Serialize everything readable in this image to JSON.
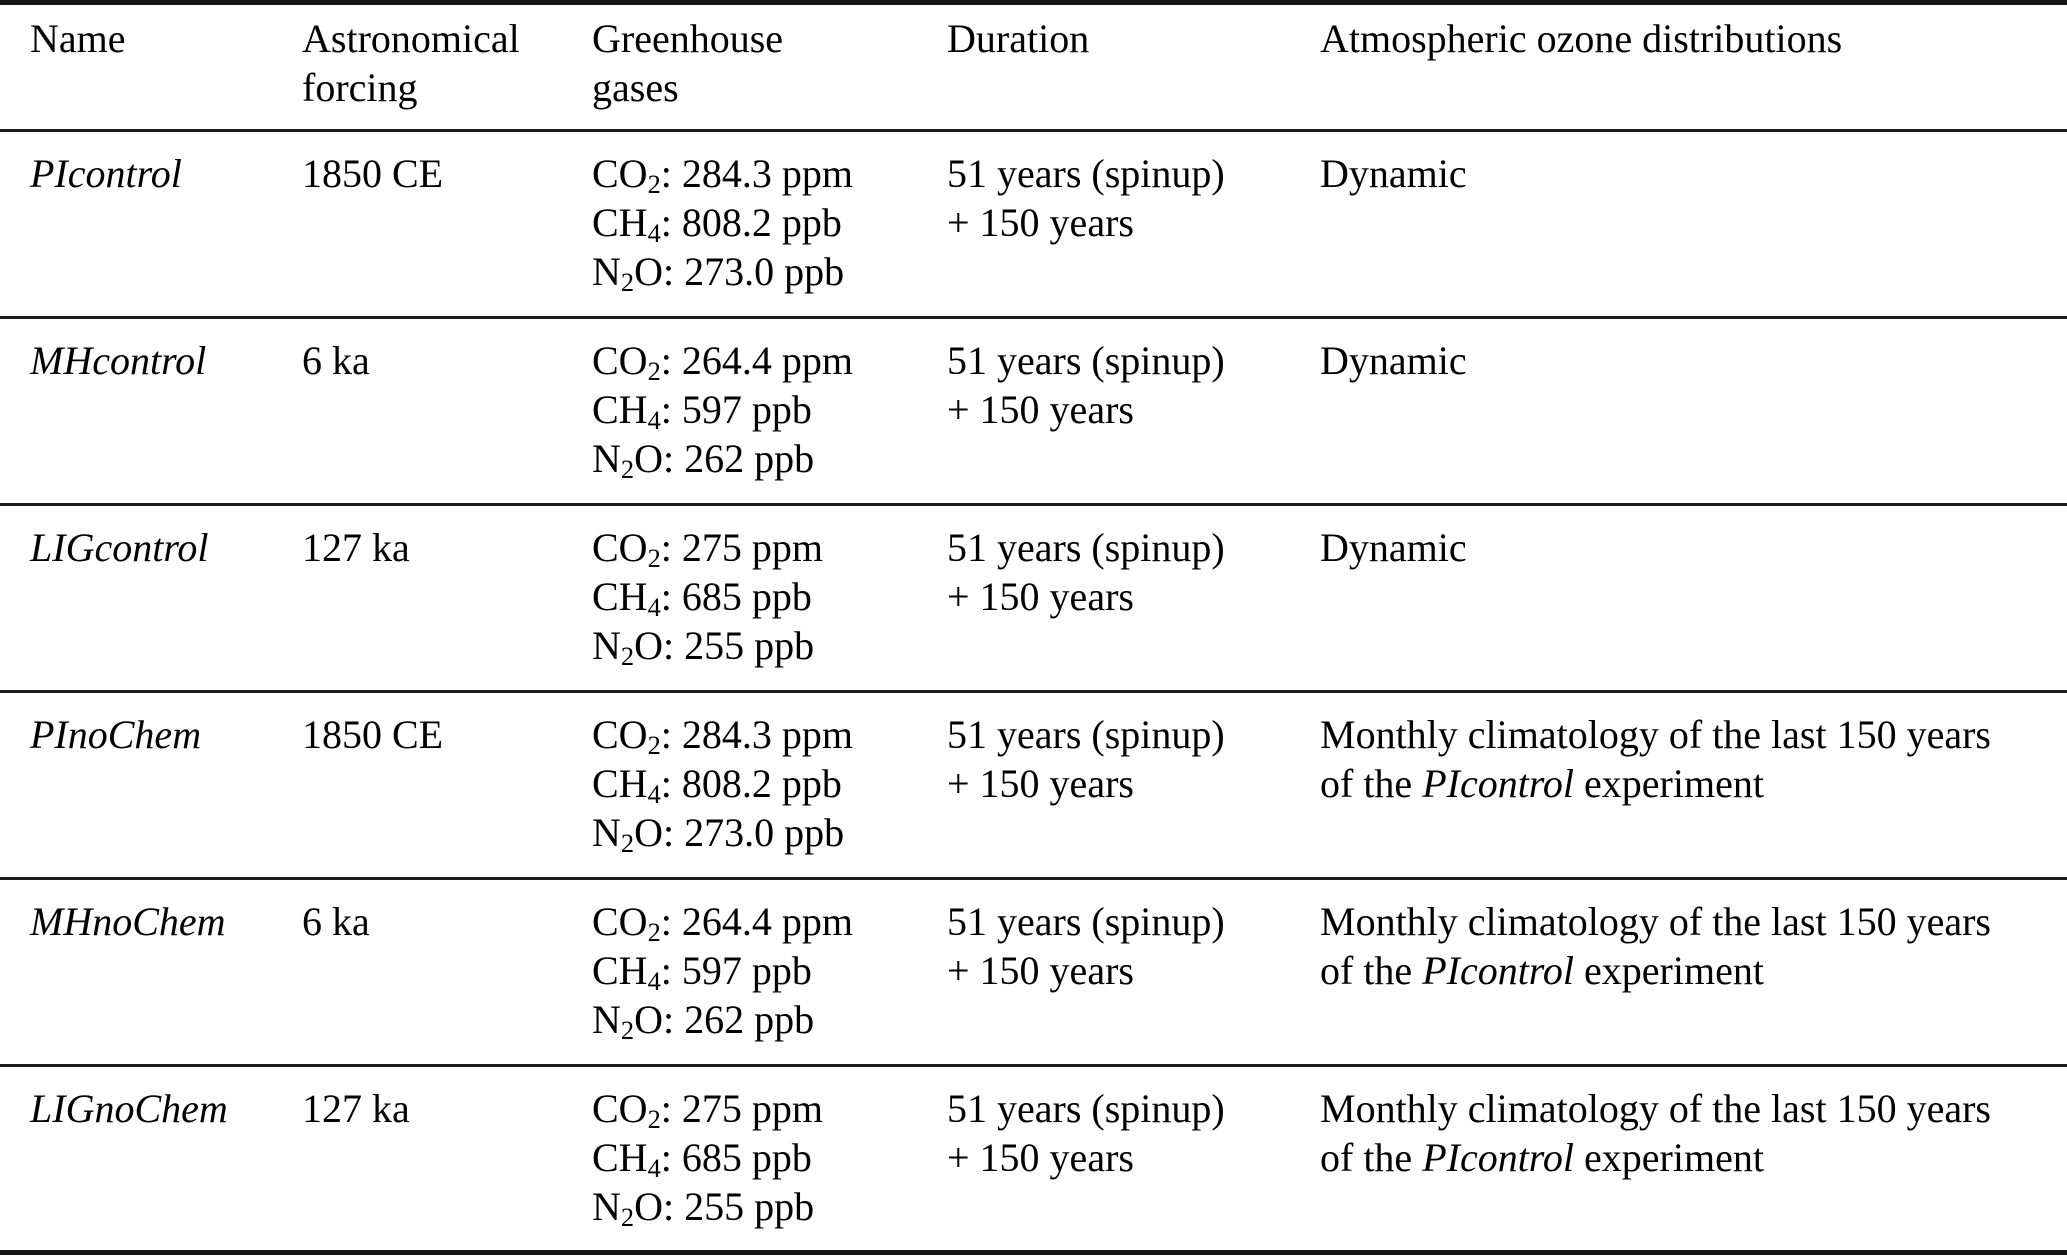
{
  "header": {
    "name": {
      "line1": "Name",
      "line2": ""
    },
    "astronomical_forcing": {
      "line1": "Astronomical",
      "line2": "forcing"
    },
    "greenhouse_gases": {
      "line1": "Greenhouse",
      "line2": "gases"
    },
    "duration": {
      "line1": "Duration",
      "line2": ""
    },
    "ozone": {
      "line1": "Atmospheric ozone distributions",
      "line2": ""
    }
  },
  "rows": [
    {
      "name": "PIcontrol",
      "forcing": "1850 CE",
      "gases": [
        {
          "pre": "CO",
          "sub": "2",
          "post": ": 284.3 ppm"
        },
        {
          "pre": "CH",
          "sub": "4",
          "post": ": 808.2 ppb"
        },
        {
          "pre": "N",
          "sub": "2",
          "post": "O: 273.0 ppb"
        }
      ],
      "duration": [
        "51 years (spinup)",
        "+ 150 years"
      ],
      "ozone": {
        "line1": "Dynamic",
        "line2_pre": "",
        "line2_italic": "",
        "line2_post": ""
      }
    },
    {
      "name": "MHcontrol",
      "forcing": "6 ka",
      "gases": [
        {
          "pre": "CO",
          "sub": "2",
          "post": ": 264.4 ppm"
        },
        {
          "pre": "CH",
          "sub": "4",
          "post": ": 597 ppb"
        },
        {
          "pre": "N",
          "sub": "2",
          "post": "O: 262 ppb"
        }
      ],
      "duration": [
        "51 years (spinup)",
        "+ 150 years"
      ],
      "ozone": {
        "line1": "Dynamic",
        "line2_pre": "",
        "line2_italic": "",
        "line2_post": ""
      }
    },
    {
      "name": "LIGcontrol",
      "forcing": "127 ka",
      "gases": [
        {
          "pre": "CO",
          "sub": "2",
          "post": ": 275 ppm"
        },
        {
          "pre": "CH",
          "sub": "4",
          "post": ": 685 ppb"
        },
        {
          "pre": "N",
          "sub": "2",
          "post": "O: 255 ppb"
        }
      ],
      "duration": [
        "51 years (spinup)",
        "+ 150 years"
      ],
      "ozone": {
        "line1": "Dynamic",
        "line2_pre": "",
        "line2_italic": "",
        "line2_post": ""
      }
    },
    {
      "name": "PInoChem",
      "forcing": "1850 CE",
      "gases": [
        {
          "pre": "CO",
          "sub": "2",
          "post": ": 284.3 ppm"
        },
        {
          "pre": "CH",
          "sub": "4",
          "post": ": 808.2 ppb"
        },
        {
          "pre": "N",
          "sub": "2",
          "post": "O: 273.0 ppb"
        }
      ],
      "duration": [
        "51 years (spinup)",
        "+ 150 years"
      ],
      "ozone": {
        "line1": "Monthly climatology of the last 150 years",
        "line2_pre": "of the ",
        "line2_italic": "PIcontrol",
        "line2_post": " experiment"
      }
    },
    {
      "name": "MHnoChem",
      "forcing": "6 ka",
      "gases": [
        {
          "pre": "CO",
          "sub": "2",
          "post": ": 264.4 ppm"
        },
        {
          "pre": "CH",
          "sub": "4",
          "post": ": 597 ppb"
        },
        {
          "pre": "N",
          "sub": "2",
          "post": "O: 262 ppb"
        }
      ],
      "duration": [
        "51 years (spinup)",
        "+ 150 years"
      ],
      "ozone": {
        "line1": "Monthly climatology of the last 150 years",
        "line2_pre": "of the ",
        "line2_italic": "PIcontrol",
        "line2_post": " experiment"
      }
    },
    {
      "name": "LIGnoChem",
      "forcing": "127 ka",
      "gases": [
        {
          "pre": "CO",
          "sub": "2",
          "post": ": 275 ppm"
        },
        {
          "pre": "CH",
          "sub": "4",
          "post": ": 685 ppb"
        },
        {
          "pre": "N",
          "sub": "2",
          "post": "O: 255 ppb"
        }
      ],
      "duration": [
        "51 years (spinup)",
        "+ 150 years"
      ],
      "ozone": {
        "line1": "Monthly climatology of the last 150 years",
        "line2_pre": "of the ",
        "line2_italic": "PIcontrol",
        "line2_post": " experiment"
      }
    }
  ],
  "colors": {
    "text": "#000000",
    "rule": "#1c1c1c",
    "background": "#ffffff"
  }
}
